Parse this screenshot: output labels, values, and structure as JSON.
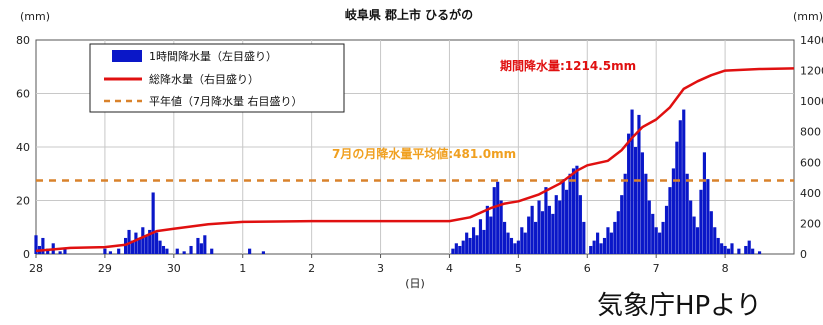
{
  "chart_data": {
    "type": "bar+line",
    "title": "岐阜県 郡上市 ひるがの",
    "left_axis_unit": "(mm)",
    "right_axis_unit": "(mm)",
    "x_unit": "(日)",
    "left_ylim": [
      0,
      80
    ],
    "left_yticks": [
      0,
      20,
      40,
      60,
      80
    ],
    "right_ylim": [
      0,
      1400
    ],
    "right_yticks": [
      0,
      200,
      400,
      600,
      800,
      1000,
      1200,
      1400
    ],
    "x_tick_labels": [
      "28",
      "29",
      "30",
      "1",
      "2",
      "3",
      "4",
      "5",
      "6",
      "7",
      "8"
    ],
    "grid": true,
    "legend_position": "top-left",
    "legend": [
      {
        "label": "1時間降水量（左目盛り）",
        "kind": "bar",
        "color": "#0a17c8"
      },
      {
        "label": "総降水量（右目盛り）",
        "kind": "line",
        "color": "#e01010"
      },
      {
        "label": "平年値（7月降水量 右目盛り）",
        "kind": "dashed",
        "color": "#d9822b"
      }
    ],
    "annotations": {
      "total": "期間降水量:1214.5mm",
      "average": "7月の月降水量平均値:481.0mm"
    },
    "normal_value_right_axis": 481.0,
    "hourly_bars": [
      {
        "x": 28.0,
        "y": 7
      },
      {
        "x": 28.05,
        "y": 3
      },
      {
        "x": 28.1,
        "y": 6
      },
      {
        "x": 28.17,
        "y": 2
      },
      {
        "x": 28.25,
        "y": 4
      },
      {
        "x": 28.35,
        "y": 1
      },
      {
        "x": 28.42,
        "y": 2
      },
      {
        "x": 29.0,
        "y": 2
      },
      {
        "x": 29.08,
        "y": 1
      },
      {
        "x": 29.2,
        "y": 2
      },
      {
        "x": 29.3,
        "y": 6
      },
      {
        "x": 29.35,
        "y": 9
      },
      {
        "x": 29.4,
        "y": 5
      },
      {
        "x": 29.45,
        "y": 8
      },
      {
        "x": 29.5,
        "y": 6
      },
      {
        "x": 29.55,
        "y": 10
      },
      {
        "x": 29.6,
        "y": 7
      },
      {
        "x": 29.65,
        "y": 9
      },
      {
        "x": 29.7,
        "y": 23
      },
      {
        "x": 29.75,
        "y": 8
      },
      {
        "x": 29.8,
        "y": 5
      },
      {
        "x": 29.85,
        "y": 3
      },
      {
        "x": 29.9,
        "y": 2
      },
      {
        "x": 30.05,
        "y": 2
      },
      {
        "x": 30.15,
        "y": 1
      },
      {
        "x": 30.25,
        "y": 3
      },
      {
        "x": 30.35,
        "y": 6
      },
      {
        "x": 30.4,
        "y": 4
      },
      {
        "x": 30.45,
        "y": 7
      },
      {
        "x": 30.55,
        "y": 2
      },
      {
        "x": 31.1,
        "y": 2
      },
      {
        "x": 31.3,
        "y": 1
      },
      {
        "x": 34.05,
        "y": 2
      },
      {
        "x": 34.1,
        "y": 4
      },
      {
        "x": 34.15,
        "y": 3
      },
      {
        "x": 34.2,
        "y": 5
      },
      {
        "x": 34.25,
        "y": 8
      },
      {
        "x": 34.3,
        "y": 6
      },
      {
        "x": 34.35,
        "y": 10
      },
      {
        "x": 34.4,
        "y": 7
      },
      {
        "x": 34.45,
        "y": 13
      },
      {
        "x": 34.5,
        "y": 9
      },
      {
        "x": 34.55,
        "y": 18
      },
      {
        "x": 34.6,
        "y": 14
      },
      {
        "x": 34.65,
        "y": 25
      },
      {
        "x": 34.7,
        "y": 27
      },
      {
        "x": 34.75,
        "y": 20
      },
      {
        "x": 34.8,
        "y": 12
      },
      {
        "x": 34.85,
        "y": 8
      },
      {
        "x": 34.9,
        "y": 6
      },
      {
        "x": 34.95,
        "y": 4
      },
      {
        "x": 35.0,
        "y": 5
      },
      {
        "x": 35.05,
        "y": 10
      },
      {
        "x": 35.1,
        "y": 8
      },
      {
        "x": 35.15,
        "y": 14
      },
      {
        "x": 35.2,
        "y": 18
      },
      {
        "x": 35.25,
        "y": 12
      },
      {
        "x": 35.3,
        "y": 20
      },
      {
        "x": 35.35,
        "y": 16
      },
      {
        "x": 35.4,
        "y": 25
      },
      {
        "x": 35.45,
        "y": 18
      },
      {
        "x": 35.5,
        "y": 15
      },
      {
        "x": 35.55,
        "y": 22
      },
      {
        "x": 35.6,
        "y": 20
      },
      {
        "x": 35.65,
        "y": 28
      },
      {
        "x": 35.7,
        "y": 24
      },
      {
        "x": 35.75,
        "y": 30
      },
      {
        "x": 35.8,
        "y": 32
      },
      {
        "x": 35.85,
        "y": 33
      },
      {
        "x": 35.9,
        "y": 22
      },
      {
        "x": 35.95,
        "y": 12
      },
      {
        "x": 36.05,
        "y": 3
      },
      {
        "x": 36.1,
        "y": 5
      },
      {
        "x": 36.15,
        "y": 8
      },
      {
        "x": 36.2,
        "y": 4
      },
      {
        "x": 36.25,
        "y": 6
      },
      {
        "x": 36.3,
        "y": 10
      },
      {
        "x": 36.35,
        "y": 8
      },
      {
        "x": 36.4,
        "y": 12
      },
      {
        "x": 36.45,
        "y": 16
      },
      {
        "x": 36.5,
        "y": 22
      },
      {
        "x": 36.55,
        "y": 30
      },
      {
        "x": 36.6,
        "y": 45
      },
      {
        "x": 36.65,
        "y": 54
      },
      {
        "x": 36.7,
        "y": 40
      },
      {
        "x": 36.75,
        "y": 52
      },
      {
        "x": 36.8,
        "y": 38
      },
      {
        "x": 36.85,
        "y": 30
      },
      {
        "x": 36.9,
        "y": 20
      },
      {
        "x": 36.95,
        "y": 15
      },
      {
        "x": 37.0,
        "y": 10
      },
      {
        "x": 37.05,
        "y": 8
      },
      {
        "x": 37.1,
        "y": 12
      },
      {
        "x": 37.15,
        "y": 18
      },
      {
        "x": 37.2,
        "y": 25
      },
      {
        "x": 37.25,
        "y": 32
      },
      {
        "x": 37.3,
        "y": 42
      },
      {
        "x": 37.35,
        "y": 50
      },
      {
        "x": 37.4,
        "y": 54
      },
      {
        "x": 37.45,
        "y": 30
      },
      {
        "x": 37.5,
        "y": 20
      },
      {
        "x": 37.55,
        "y": 14
      },
      {
        "x": 37.6,
        "y": 10
      },
      {
        "x": 37.65,
        "y": 24
      },
      {
        "x": 37.7,
        "y": 38
      },
      {
        "x": 37.75,
        "y": 28
      },
      {
        "x": 37.8,
        "y": 16
      },
      {
        "x": 37.85,
        "y": 10
      },
      {
        "x": 37.9,
        "y": 6
      },
      {
        "x": 37.95,
        "y": 4
      },
      {
        "x": 38.0,
        "y": 3
      },
      {
        "x": 38.05,
        "y": 2
      },
      {
        "x": 38.1,
        "y": 4
      },
      {
        "x": 38.2,
        "y": 2
      },
      {
        "x": 38.3,
        "y": 3
      },
      {
        "x": 38.35,
        "y": 5
      },
      {
        "x": 38.4,
        "y": 2
      },
      {
        "x": 38.5,
        "y": 1
      }
    ],
    "total_line": [
      {
        "x": 28.0,
        "y": 20
      },
      {
        "x": 28.5,
        "y": 40
      },
      {
        "x": 29.0,
        "y": 45
      },
      {
        "x": 29.3,
        "y": 60
      },
      {
        "x": 29.5,
        "y": 100
      },
      {
        "x": 29.75,
        "y": 150
      },
      {
        "x": 30.0,
        "y": 165
      },
      {
        "x": 30.5,
        "y": 195
      },
      {
        "x": 31.0,
        "y": 210
      },
      {
        "x": 32.0,
        "y": 215
      },
      {
        "x": 34.0,
        "y": 215
      },
      {
        "x": 34.3,
        "y": 240
      },
      {
        "x": 34.6,
        "y": 300
      },
      {
        "x": 34.8,
        "y": 330
      },
      {
        "x": 35.0,
        "y": 345
      },
      {
        "x": 35.3,
        "y": 390
      },
      {
        "x": 35.6,
        "y": 460
      },
      {
        "x": 35.85,
        "y": 545
      },
      {
        "x": 36.0,
        "y": 580
      },
      {
        "x": 36.3,
        "y": 610
      },
      {
        "x": 36.5,
        "y": 680
      },
      {
        "x": 36.65,
        "y": 760
      },
      {
        "x": 36.8,
        "y": 830
      },
      {
        "x": 37.0,
        "y": 880
      },
      {
        "x": 37.2,
        "y": 960
      },
      {
        "x": 37.4,
        "y": 1080
      },
      {
        "x": 37.6,
        "y": 1130
      },
      {
        "x": 37.8,
        "y": 1170
      },
      {
        "x": 38.0,
        "y": 1200
      },
      {
        "x": 38.5,
        "y": 1210
      },
      {
        "x": 39.0,
        "y": 1214.5
      }
    ],
    "x_domain": [
      28.0,
      39.0
    ]
  },
  "footer": {
    "credit": "気象庁HPより"
  }
}
